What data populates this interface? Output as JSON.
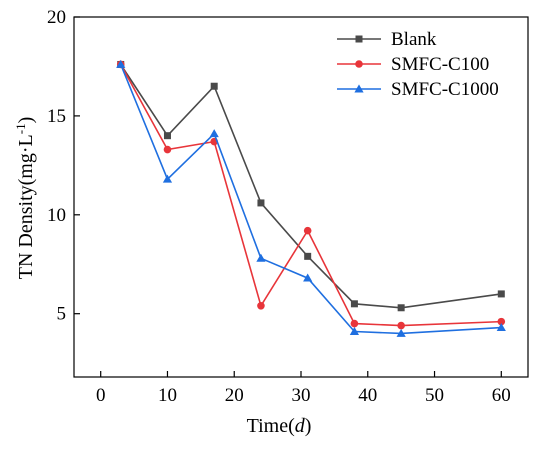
{
  "chart_data": {
    "type": "line",
    "xlabel_prefix": "Time(",
    "xlabel_unit": "d",
    "xlabel_suffix": ")",
    "ylabel_main": "TN Density(mg·L",
    "ylabel_sup": "-1",
    "ylabel_end": ")",
    "xlim": [
      -4,
      64
    ],
    "ylim": [
      1.8,
      20
    ],
    "x_ticks": [
      0,
      10,
      20,
      30,
      40,
      50,
      60
    ],
    "y_ticks": [
      5,
      10,
      15,
      20
    ],
    "grid": false,
    "legend_position": "top-right",
    "series": [
      {
        "name": "Blank",
        "color": "#4a4a4a",
        "marker": "square",
        "x": [
          3,
          10,
          17,
          24,
          31,
          38,
          45,
          60
        ],
        "y": [
          17.6,
          14.0,
          16.5,
          10.6,
          7.9,
          5.5,
          5.3,
          6.0
        ]
      },
      {
        "name": "SMFC-C100",
        "color": "#e8353a",
        "marker": "circle",
        "x": [
          3,
          10,
          17,
          24,
          31,
          38,
          45,
          60
        ],
        "y": [
          17.6,
          13.3,
          13.7,
          5.4,
          9.2,
          4.5,
          4.4,
          4.6
        ]
      },
      {
        "name": "SMFC-C1000",
        "color": "#1f6fe0",
        "marker": "triangle",
        "x": [
          3,
          10,
          17,
          24,
          31,
          38,
          45,
          60
        ],
        "y": [
          17.6,
          11.8,
          14.1,
          7.8,
          6.8,
          4.1,
          4.0,
          4.3
        ]
      }
    ]
  }
}
